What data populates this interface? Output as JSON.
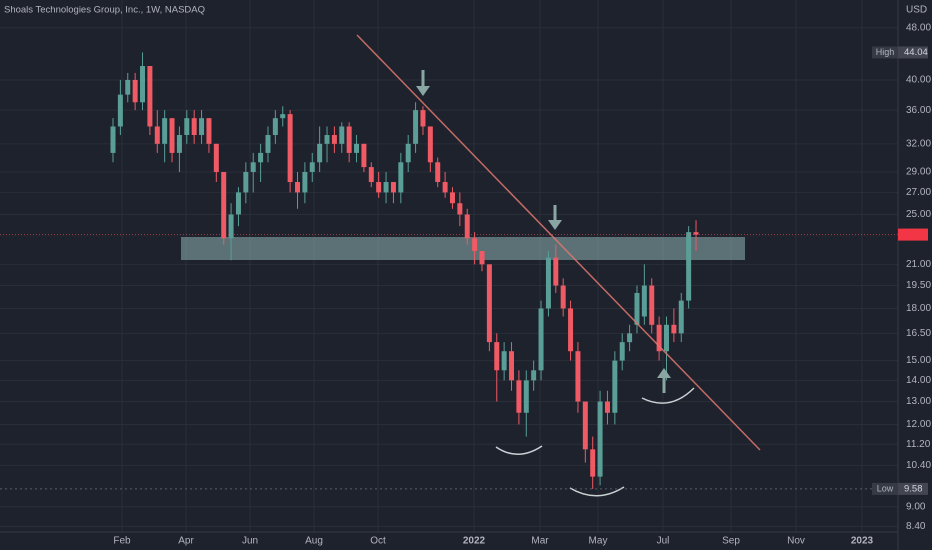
{
  "chart_data": {
    "type": "candlestick",
    "title": "Shoals Technologies Group, Inc., 1W, NASDAQ",
    "currency": "USD",
    "log_scale": true,
    "grid": true,
    "up_color": "#5a9e97",
    "down_color": "#ef5a64",
    "ylim": [
      52.9,
      8.24
    ],
    "yticks": [
      {
        "value": 48,
        "label": "48.00"
      },
      {
        "value": 40,
        "label": "40.00"
      },
      {
        "value": 36,
        "label": "36.00"
      },
      {
        "value": 32,
        "label": "32.00"
      },
      {
        "value": 29,
        "label": "29.00"
      },
      {
        "value": 27,
        "label": "27.00"
      },
      {
        "value": 25,
        "label": "25.00"
      },
      {
        "value": 21,
        "label": "21.00"
      },
      {
        "value": 19.5,
        "label": "19.50"
      },
      {
        "value": 18,
        "label": "18.00"
      },
      {
        "value": 16.5,
        "label": "16.50"
      },
      {
        "value": 15,
        "label": "15.00"
      },
      {
        "value": 14,
        "label": "14.00"
      },
      {
        "value": 13,
        "label": "13.00"
      },
      {
        "value": 12,
        "label": "12.00"
      },
      {
        "value": 11.2,
        "label": "11.20"
      },
      {
        "value": 10.4,
        "label": "10.40"
      },
      {
        "value": 9,
        "label": "9.00"
      },
      {
        "value": 8.4,
        "label": "8.40"
      }
    ],
    "x_labels": [
      "Feb",
      "Apr",
      "Jun",
      "Aug",
      "Oct",
      "2022",
      "Mar",
      "May",
      "Jul",
      "Sep",
      "Nov",
      "2023"
    ],
    "high_marker": {
      "label": "High",
      "value": 44.04
    },
    "low_marker": {
      "label": "Low",
      "value": 9.58
    },
    "open": [
      31,
      34,
      38,
      40,
      37,
      42,
      34,
      32,
      35,
      31,
      33,
      35,
      33,
      35,
      32,
      29,
      23,
      25,
      27,
      29,
      30,
      31,
      33,
      35,
      35.5,
      28,
      27,
      29,
      30,
      32,
      33,
      32,
      34,
      31,
      32,
      29.5,
      28,
      27,
      28,
      27,
      30,
      32,
      36,
      34,
      30,
      28,
      27,
      26,
      25,
      23,
      22,
      21,
      16,
      14.5,
      15.5,
      14,
      12.5,
      14,
      14.5,
      18,
      21.5,
      19.5,
      18,
      15.5,
      13,
      11,
      10,
      13,
      12.5,
      15,
      16,
      17,
      17.5,
      19.5,
      17,
      15.5,
      17,
      16.5,
      18.5,
      23.5
    ],
    "high": [
      35,
      40,
      41,
      41,
      44.04,
      42,
      36,
      36,
      35,
      34,
      36,
      36,
      36,
      35,
      32,
      29,
      26,
      27.5,
      30,
      31,
      32,
      34,
      36,
      36.5,
      36,
      29,
      30,
      31,
      34,
      34,
      34,
      34.5,
      34.5,
      33,
      32,
      30,
      29,
      29,
      28,
      31,
      33,
      37,
      36.5,
      34,
      30.5,
      29,
      27.5,
      27,
      25.5,
      23.5,
      22,
      21,
      16.5,
      16,
      16,
      14.5,
      14.5,
      15,
      18.5,
      22,
      22.5,
      20,
      18.5,
      16,
      13,
      11.5,
      13.5,
      13.5,
      15.5,
      16.5,
      17,
      19.5,
      21,
      20,
      17.5,
      17.5,
      18,
      19,
      24,
      24.5
    ],
    "low": [
      30,
      33,
      37,
      36,
      36,
      33,
      31,
      30,
      30,
      29,
      32,
      32,
      32,
      31,
      28,
      22.5,
      21.3,
      24,
      26,
      27,
      28,
      30,
      32,
      34,
      27,
      25.5,
      26,
      28,
      29,
      30,
      31,
      31,
      30,
      30,
      29,
      27.5,
      26.5,
      26,
      26,
      26,
      29,
      31,
      33,
      29,
      27.5,
      26.5,
      25.5,
      24,
      22.5,
      21,
      20.5,
      15.5,
      13,
      14,
      13.5,
      12,
      11.5,
      13.5,
      14,
      17.5,
      19,
      17.5,
      15,
      12.5,
      10.5,
      9.58,
      9.7,
      12,
      12,
      14.5,
      15.5,
      16.5,
      17,
      16.5,
      15,
      14,
      16,
      16,
      18,
      22
    ],
    "close": [
      34,
      38,
      40,
      37,
      42,
      34,
      32,
      35,
      31,
      33,
      35,
      33,
      35,
      32,
      29,
      23,
      25,
      27,
      29,
      30,
      31,
      33,
      35,
      35.5,
      28,
      27,
      29,
      30,
      32,
      33,
      32,
      34,
      31,
      32,
      29.5,
      28,
      27,
      28,
      27,
      30,
      32,
      36,
      34,
      30,
      28,
      27,
      26,
      25,
      23,
      22,
      21,
      16,
      14.5,
      15.5,
      14,
      12.5,
      14,
      14.5,
      18,
      21.5,
      19.5,
      18,
      15.5,
      13,
      11,
      10,
      13,
      12.5,
      15,
      16,
      16.5,
      19,
      19.5,
      17,
      15.5,
      17,
      16.5,
      18.5,
      23.5,
      23.3
    ]
  }
}
